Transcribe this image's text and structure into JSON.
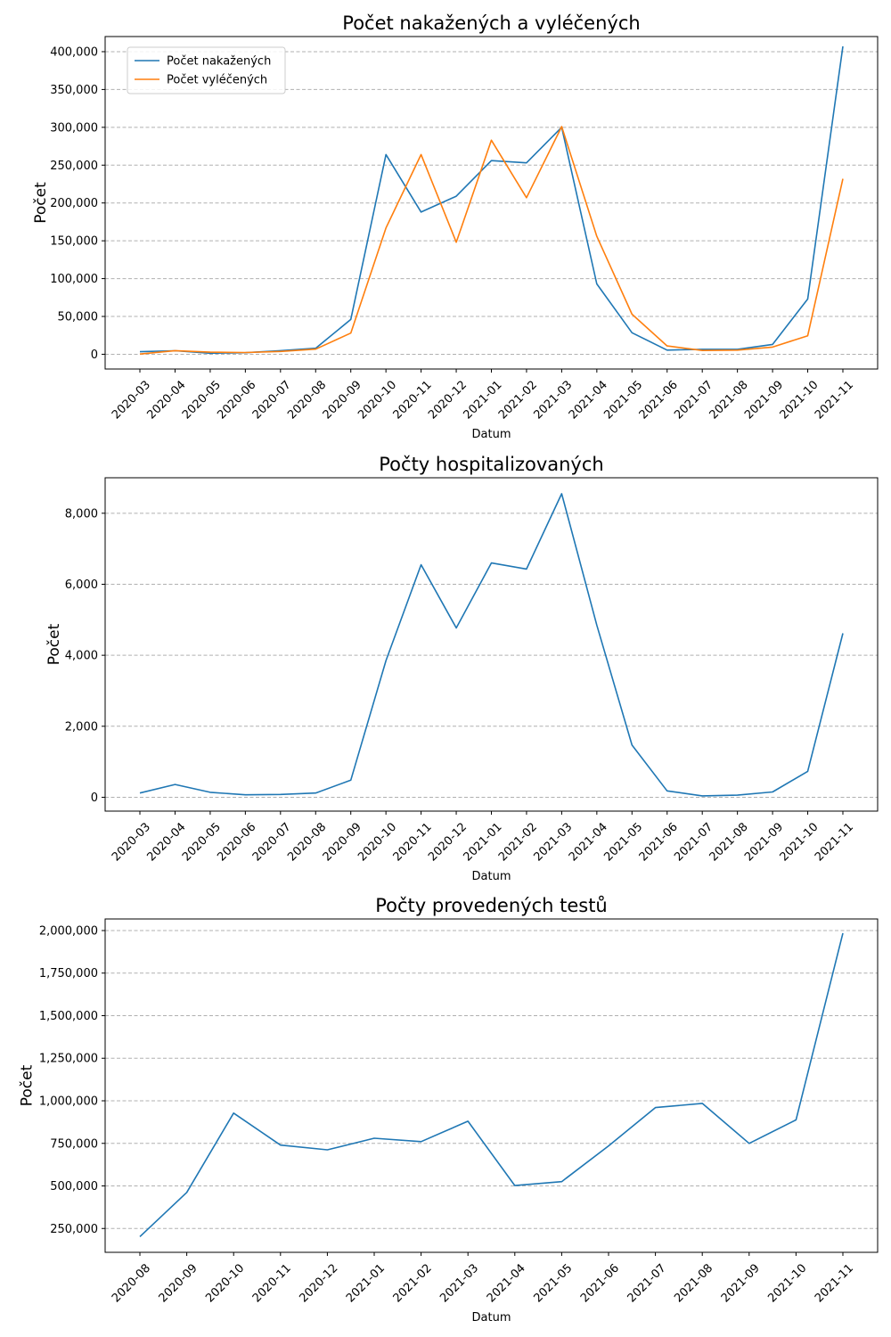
{
  "chart_data": [
    {
      "type": "line",
      "title": "Počet nakažených a vyléčených",
      "xlabel": "Datum",
      "ylabel": "Počet",
      "categories": [
        "2020-03",
        "2020-04",
        "2020-05",
        "2020-06",
        "2020-07",
        "2020-08",
        "2020-09",
        "2020-10",
        "2020-11",
        "2020-12",
        "2021-01",
        "2021-02",
        "2021-03",
        "2021-04",
        "2021-05",
        "2021-06",
        "2021-07",
        "2021-08",
        "2021-09",
        "2021-10",
        "2021-11"
      ],
      "yticks": [
        0,
        50000,
        100000,
        150000,
        200000,
        250000,
        300000,
        350000,
        400000
      ],
      "ytick_labels": [
        "0",
        "50,000",
        "100,000",
        "150,000",
        "200,000",
        "250,000",
        "300,000",
        "350,000",
        "400,000"
      ],
      "ylim": [
        -19500,
        420000
      ],
      "grid": "y",
      "legend": "top-left",
      "series": [
        {
          "name": "Počet nakažených",
          "color": "#1f77b4",
          "values": [
            3300,
            4600,
            1300,
            2100,
            4800,
            8000,
            46000,
            264000,
            188000,
            209000,
            256000,
            253000,
            300000,
            93000,
            28500,
            5500,
            6500,
            6500,
            13000,
            73000,
            407000
          ]
        },
        {
          "name": "Počet vyléčených",
          "color": "#ff7f0e",
          "values": [
            300,
            4800,
            2800,
            2300,
            3700,
            6800,
            28000,
            167000,
            264000,
            148000,
            283000,
            207000,
            301000,
            156000,
            53000,
            11000,
            5000,
            5500,
            9500,
            24500,
            232000
          ]
        }
      ]
    },
    {
      "type": "line",
      "title": "Počty hospitalizovaných",
      "xlabel": "Datum",
      "ylabel": "Počet",
      "categories": [
        "2020-03",
        "2020-04",
        "2020-05",
        "2020-06",
        "2020-07",
        "2020-08",
        "2020-09",
        "2020-10",
        "2020-11",
        "2020-12",
        "2021-01",
        "2021-02",
        "2021-03",
        "2021-04",
        "2021-05",
        "2021-06",
        "2021-07",
        "2021-08",
        "2021-09",
        "2021-10",
        "2021-11"
      ],
      "yticks": [
        0,
        2000,
        4000,
        6000,
        8000
      ],
      "ytick_labels": [
        "0",
        "2,000",
        "4,000",
        "6,000",
        "8,000"
      ],
      "ylim": [
        -390,
        9000
      ],
      "grid": "y",
      "series": [
        {
          "color": "#1f77b4",
          "values": [
            120,
            360,
            140,
            70,
            80,
            120,
            480,
            3850,
            6550,
            4770,
            6600,
            6430,
            8550,
            4850,
            1470,
            180,
            40,
            60,
            150,
            730,
            4620
          ]
        }
      ]
    },
    {
      "type": "line",
      "title": "Počty provedených testů",
      "xlabel": "Datum",
      "ylabel": "Počet",
      "categories": [
        "2020-08",
        "2020-09",
        "2020-10",
        "2020-11",
        "2020-12",
        "2021-01",
        "2021-02",
        "2021-03",
        "2021-04",
        "2021-05",
        "2021-06",
        "2021-07",
        "2021-08",
        "2021-09",
        "2021-10",
        "2021-11"
      ],
      "yticks": [
        250000,
        500000,
        750000,
        1000000,
        1250000,
        1500000,
        1750000,
        2000000
      ],
      "ytick_labels": [
        "250,000",
        "500,000",
        "750,000",
        "1,000,000",
        "1,250,000",
        "1,500,000",
        "1,750,000",
        "2,000,000"
      ],
      "ylim": [
        110000,
        2068000
      ],
      "grid": "y",
      "series": [
        {
          "color": "#1f77b4",
          "values": [
            202000,
            462000,
            928000,
            740000,
            712000,
            780000,
            760000,
            880000,
            502000,
            525000,
            735000,
            960000,
            985000,
            750000,
            888000,
            1985000
          ]
        }
      ]
    }
  ]
}
